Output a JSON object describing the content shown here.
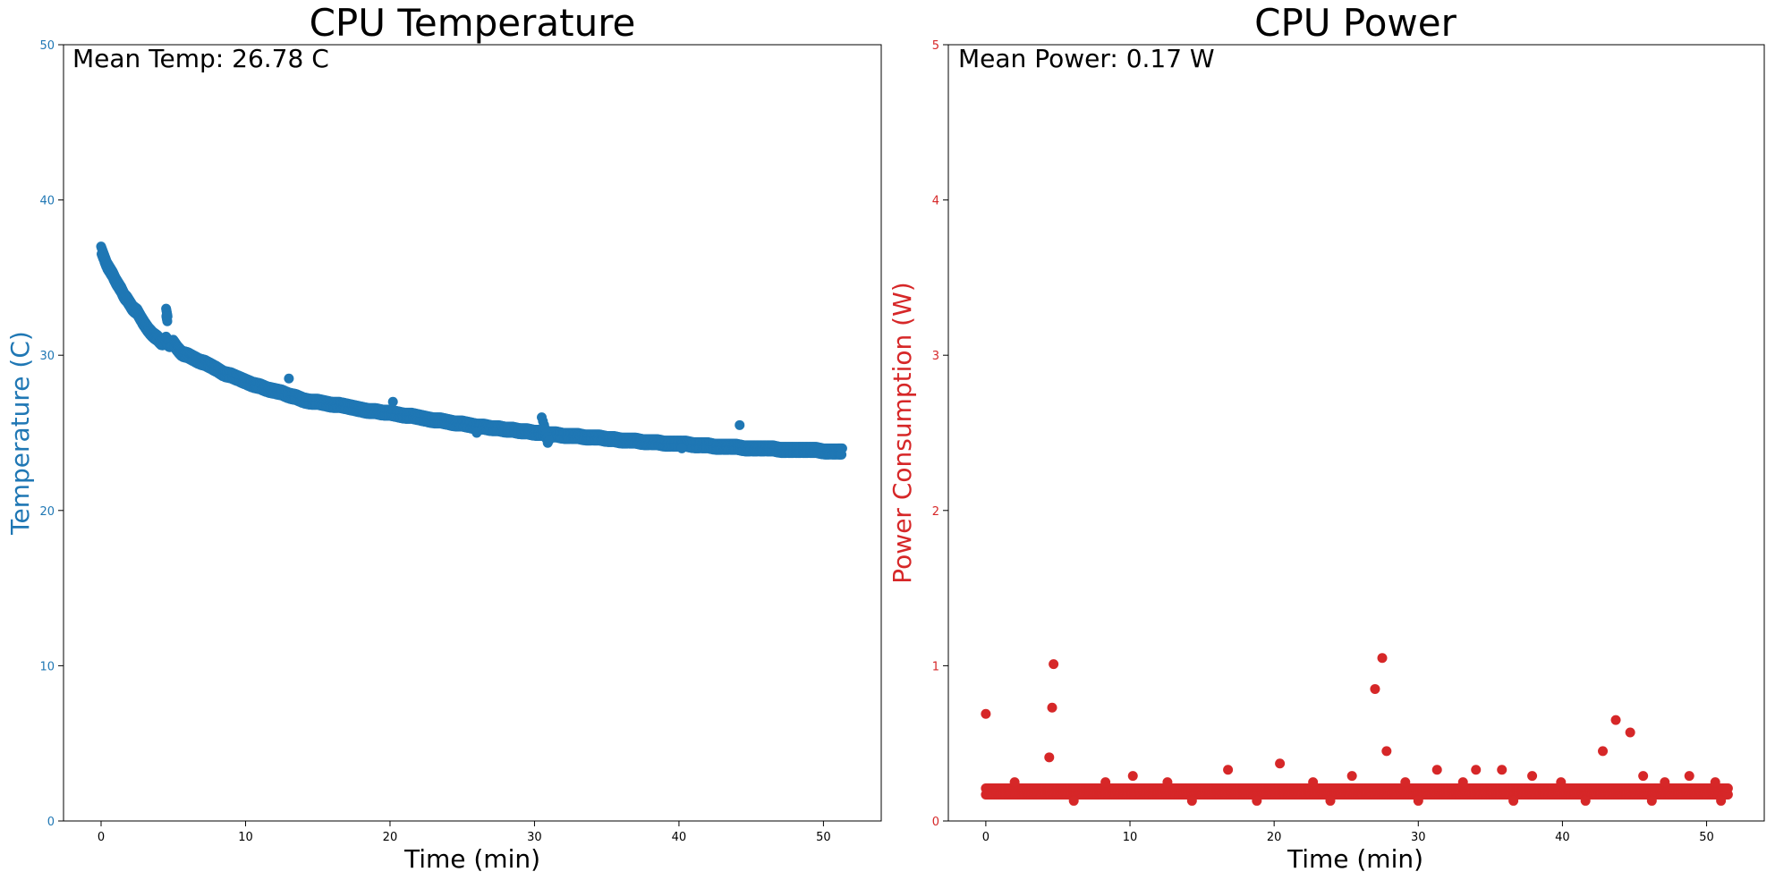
{
  "figure": {
    "background": "#ffffff"
  },
  "chart_data": [
    {
      "type": "scatter",
      "title": "CPU Temperature",
      "xlabel": "Time (min)",
      "ylabel": "Temperature (C)",
      "annotation": "Mean Temp: 26.78 C",
      "color": "#1f77b4",
      "ylabel_color": "#1f77b4",
      "ytick_color": "#1f77b4",
      "xlim": [
        -2.6,
        54.0
      ],
      "ylim": [
        0,
        50
      ],
      "xticks": [
        0,
        10,
        20,
        30,
        40,
        50
      ],
      "yticks": [
        0,
        10,
        20,
        30,
        40,
        50
      ],
      "grid": false,
      "legend": "none",
      "series": [
        {
          "x": [
            0.0,
            0.2,
            0.4,
            0.6,
            0.8,
            1.0,
            1.2,
            1.4,
            1.6,
            1.8,
            2.0,
            2.2,
            2.5,
            2.8,
            3.0,
            3.3,
            3.6,
            3.9,
            4.2,
            4.5,
            4.7,
            5.0,
            5.3,
            5.6,
            6.0,
            6.4,
            6.8,
            7.2,
            7.6,
            8.0,
            8.5,
            9.0,
            9.5,
            10.0,
            10.5,
            11.0,
            11.5,
            12.0,
            12.5,
            13.0,
            13.5,
            14.0,
            14.5,
            15.0,
            15.5,
            16.0,
            16.5,
            17.0,
            17.5,
            18.0,
            18.5,
            19.0,
            19.5,
            20.0,
            20.5,
            21.0,
            21.5,
            22.0,
            22.5,
            23.0,
            23.5,
            24.0,
            24.5,
            25.0,
            25.5,
            26.0,
            26.5,
            27.0,
            27.5,
            28.0,
            28.5,
            29.0,
            29.5,
            30.0,
            30.5,
            31.0,
            31.5,
            32.0,
            32.5,
            33.0,
            33.5,
            34.0,
            34.5,
            35.0,
            35.5,
            36.0,
            36.5,
            37.0,
            37.5,
            38.0,
            38.5,
            39.0,
            39.5,
            40.0,
            40.5,
            41.0,
            41.5,
            42.0,
            42.5,
            43.0,
            43.5,
            44.0,
            44.5,
            45.0,
            45.5,
            46.0,
            46.5,
            47.0,
            47.5,
            48.0,
            48.5,
            49.0,
            49.5,
            50.0,
            50.5,
            51.0,
            51.3,
            4.5,
            4.6,
            13.0,
            20.2,
            26.0,
            30.5,
            31.0,
            40.2,
            44.2
          ],
          "y": [
            37.0,
            36.5,
            36.0,
            35.7,
            35.4,
            35.0,
            34.7,
            34.4,
            34.0,
            33.8,
            33.5,
            33.2,
            33.0,
            32.5,
            32.2,
            31.8,
            31.5,
            31.3,
            31.0,
            31.2,
            30.9,
            31.0,
            30.6,
            30.3,
            30.2,
            30.0,
            29.8,
            29.7,
            29.5,
            29.3,
            29.0,
            28.9,
            28.7,
            28.5,
            28.3,
            28.2,
            28.0,
            27.9,
            27.8,
            27.6,
            27.5,
            27.3,
            27.2,
            27.2,
            27.1,
            27.0,
            27.0,
            26.9,
            26.8,
            26.7,
            26.6,
            26.6,
            26.5,
            26.5,
            26.4,
            26.3,
            26.3,
            26.2,
            26.1,
            26.0,
            26.0,
            25.9,
            25.8,
            25.8,
            25.7,
            25.6,
            25.6,
            25.5,
            25.5,
            25.4,
            25.4,
            25.3,
            25.3,
            25.2,
            25.2,
            25.1,
            25.1,
            25.0,
            25.0,
            25.0,
            24.9,
            24.9,
            24.9,
            24.8,
            24.8,
            24.7,
            24.7,
            24.7,
            24.6,
            24.6,
            24.6,
            24.5,
            24.5,
            24.5,
            24.5,
            24.4,
            24.4,
            24.4,
            24.3,
            24.3,
            24.3,
            24.3,
            24.2,
            24.2,
            24.2,
            24.2,
            24.2,
            24.1,
            24.1,
            24.1,
            24.1,
            24.1,
            24.1,
            24.0,
            24.0,
            24.0,
            24.0,
            33.0,
            32.5,
            28.5,
            27.0,
            25.0,
            26.0,
            24.5,
            24.0,
            25.5
          ]
        }
      ]
    },
    {
      "type": "scatter",
      "title": "CPU Power",
      "xlabel": "Time (min)",
      "ylabel": "Power Consumption (W)",
      "annotation": "Mean Power: 0.17 W",
      "color": "#d62728",
      "ylabel_color": "#d62728",
      "ytick_color": "#d62728",
      "xlim": [
        -2.6,
        54.0
      ],
      "ylim": [
        0,
        5
      ],
      "xticks": [
        0,
        10,
        20,
        30,
        40,
        50
      ],
      "yticks": [
        0,
        1,
        2,
        3,
        4,
        5
      ],
      "grid": false,
      "legend": "none",
      "series": [
        {
          "x": [
            0.0,
            4.4,
            4.6,
            4.7,
            27.0,
            27.5,
            27.8,
            42.8,
            43.7,
            44.7,
            20.4,
            16.8,
            31.3,
            34.0,
            35.8,
            2.0,
            10.2,
            25.4,
            37.9,
            45.6,
            48.8,
            8.3,
            12.6,
            22.7,
            29.1,
            33.1,
            39.9,
            47.1,
            50.6,
            6.1,
            14.3,
            18.8,
            23.9,
            30.0,
            36.6,
            41.6,
            46.2,
            51.0
          ],
          "y": [
            0.69,
            0.41,
            0.73,
            1.01,
            0.85,
            1.05,
            0.45,
            0.45,
            0.65,
            0.57,
            0.37,
            0.33,
            0.33,
            0.33,
            0.33,
            0.25,
            0.29,
            0.29,
            0.29,
            0.29,
            0.29,
            0.25,
            0.25,
            0.25,
            0.25,
            0.25,
            0.25,
            0.25,
            0.25,
            0.13,
            0.13,
            0.13,
            0.13,
            0.13,
            0.13,
            0.13,
            0.13,
            0.13
          ]
        },
        {
          "x_range": [
            0.0,
            51.5
          ],
          "y_levels": [
            0.17,
            0.21
          ],
          "band": true
        }
      ]
    }
  ]
}
